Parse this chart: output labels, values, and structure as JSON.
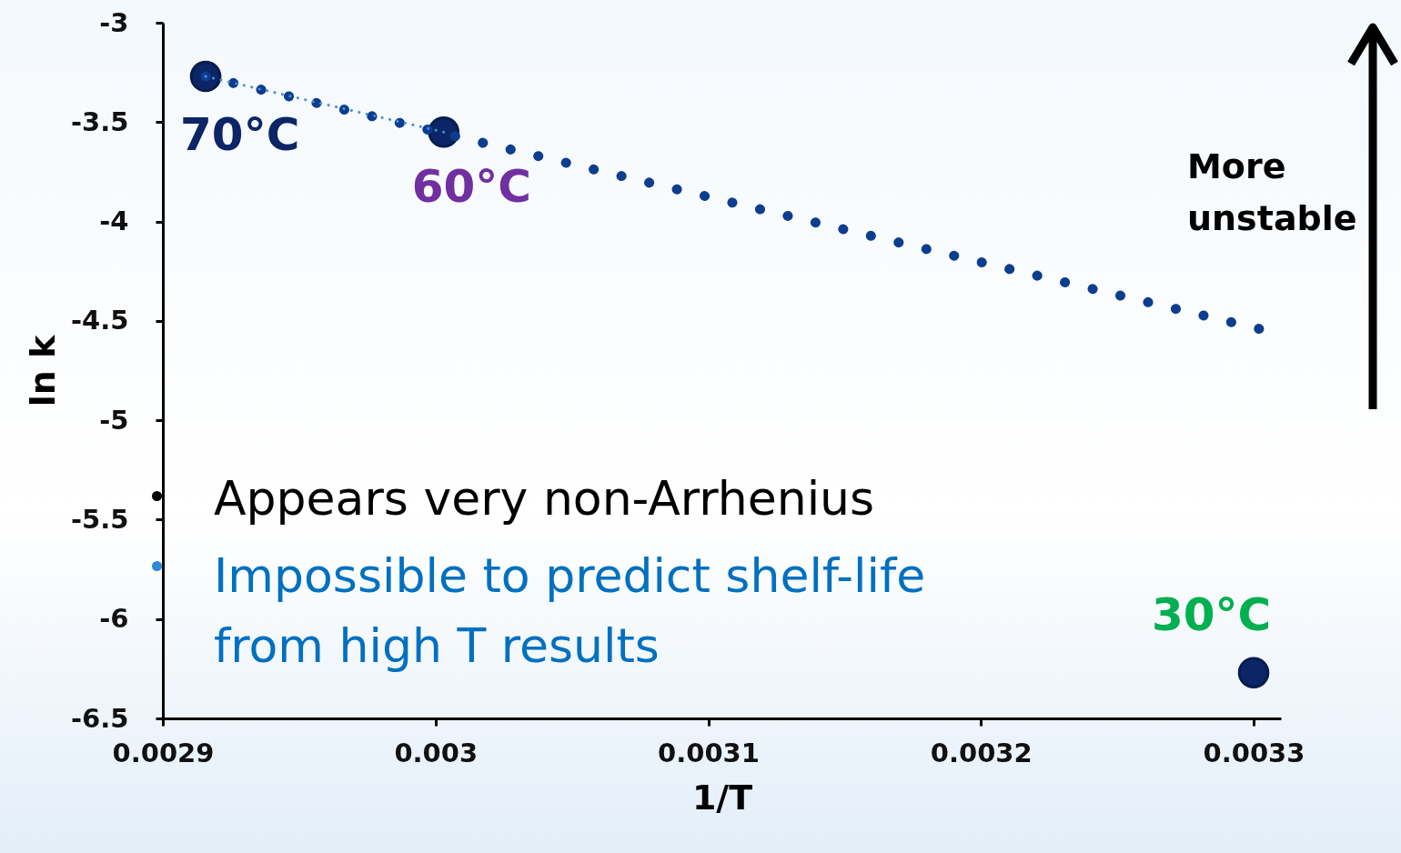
{
  "chart_data": {
    "type": "scatter",
    "xlabel": "1/T",
    "ylabel": "ln k",
    "xlim": [
      0.0029,
      0.00331
    ],
    "ylim": [
      -6.5,
      -3
    ],
    "xticks": [
      0.0029,
      0.003,
      0.0031,
      0.0032,
      0.0033
    ],
    "yticks": [
      -6.5,
      -6,
      -5.5,
      -5,
      -4.5,
      -4,
      -3.5,
      -3
    ],
    "grid": false,
    "marker": "circle",
    "series": [
      {
        "type": "line",
        "marker": "none",
        "color": "#0d3d8f",
        "line_style": "dotted",
        "x": [
          0.0029157,
          0.003302
        ],
        "values": [
          -3.27,
          -4.54
        ]
      },
      {
        "type": "line",
        "marker": "none",
        "color": "#4a8fd4",
        "line_style": "dotted",
        "x": [
          0.0029157,
          0.003003
        ],
        "values": [
          -3.27,
          -3.55
        ]
      },
      {
        "color": "#0b2566",
        "x": [
          0.0029157,
          0.003003,
          0.0033
        ],
        "values": [
          -3.27,
          -3.55,
          -6.27
        ]
      }
    ],
    "annotations": [
      {
        "text": "70°C",
        "x": 0.0029157,
        "y": -3.27
      },
      {
        "text": "60°C",
        "x": 0.003003,
        "y": -3.55
      },
      {
        "text": "30°C",
        "x": 0.0033,
        "y": -6.27
      },
      "More unstable",
      "Appears very non-Arrhenius",
      "Impossible to predict shelf-life from high T results"
    ]
  }
}
